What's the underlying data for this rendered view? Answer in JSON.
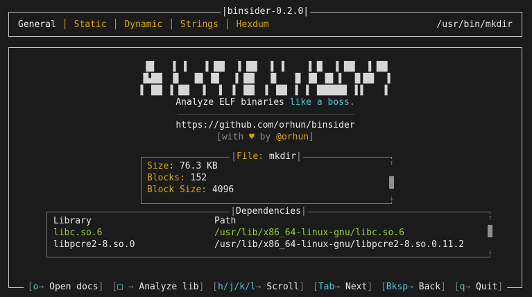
{
  "app": {
    "title_display": "|binsider-0.2.0|",
    "file_path": "/usr/bin/mkdir"
  },
  "glyphs": {
    "tab_separator": "│",
    "pipe": "|",
    "up_arrow": "↑",
    "down_arrow": "↓",
    "right_arrow": "→",
    "bracket_open": "[",
    "bracket_close": "]"
  },
  "tabs": [
    {
      "label": "General",
      "active": true
    },
    {
      "label": "Static",
      "active": false
    },
    {
      "label": "Dynamic",
      "active": false
    },
    {
      "label": "Strings",
      "active": false
    },
    {
      "label": "Hexdum",
      "active": false
    }
  ],
  "splash": {
    "logo_lines": [
      "▐█   ▐ ▐   ▐ ██  ▐ ██  ▐ ▐    ▐ █  ▐ ██  ▐ ██",
      "▐▙██  █   █▌ █▌  ▐ ██   █   ▐▌ █▌ █▌▐  ▐▌██  ▐",
      "▌ ██ ▐ ██  ▐  ▐  ▌ ██  ▌ ██ ▐ ▐ ▐█████ ▐▐    ▌"
    ],
    "tagline_plain": "Analyze ELF binaries ",
    "tagline_accent": "like a boss.",
    "url": "https://github.com/orhun/binsider",
    "byline_prefix": "[with ",
    "byline_heart": "♥",
    "byline_mid": " by ",
    "byline_author": "@orhun",
    "byline_suffix": "]"
  },
  "file_info": {
    "title_label": "File:",
    "title_value": " mkdir",
    "rows": [
      {
        "label": "Size:",
        "value": " 76.3 KB"
      },
      {
        "label": "Blocks:",
        "value": " 152"
      },
      {
        "label": "Block Size:",
        "value": " 4096"
      }
    ]
  },
  "dependencies": {
    "title": "Dependencies",
    "columns": [
      "Library",
      "Path"
    ],
    "rows": [
      {
        "library": "libc.so.6",
        "path": "/usr/lib/x86_64-linux-gnu/libc.so.6",
        "selected": true
      },
      {
        "library": "libpcre2-8.so.0",
        "path": "/usr/lib/x86_64-linux-gnu/libpcre2-8.so.0.11.2",
        "selected": false
      }
    ]
  },
  "hints": [
    {
      "key": "o",
      "label": "Open docs",
      "space_after_key": ""
    },
    {
      "key": "□",
      "label": "Analyze lib",
      "space_after_key": " "
    },
    {
      "key": "h/j/k/l",
      "label": "Scroll",
      "space_after_key": ""
    },
    {
      "key": "Tab",
      "label": "Next",
      "space_after_key": ""
    },
    {
      "key": "Bksp",
      "label": "Back",
      "space_after_key": ""
    },
    {
      "key": "q",
      "label": "Quit",
      "space_after_key": ""
    }
  ],
  "colors": {
    "background": "#1b1b1b",
    "border_bright": "#c6c6c6",
    "border_dim": "#7c7c7c",
    "yellow": "#d7a700",
    "cyan": "#4fc4d4",
    "green": "#9acd32",
    "white": "#e8e8e8",
    "gray": "#8a8a8a"
  }
}
